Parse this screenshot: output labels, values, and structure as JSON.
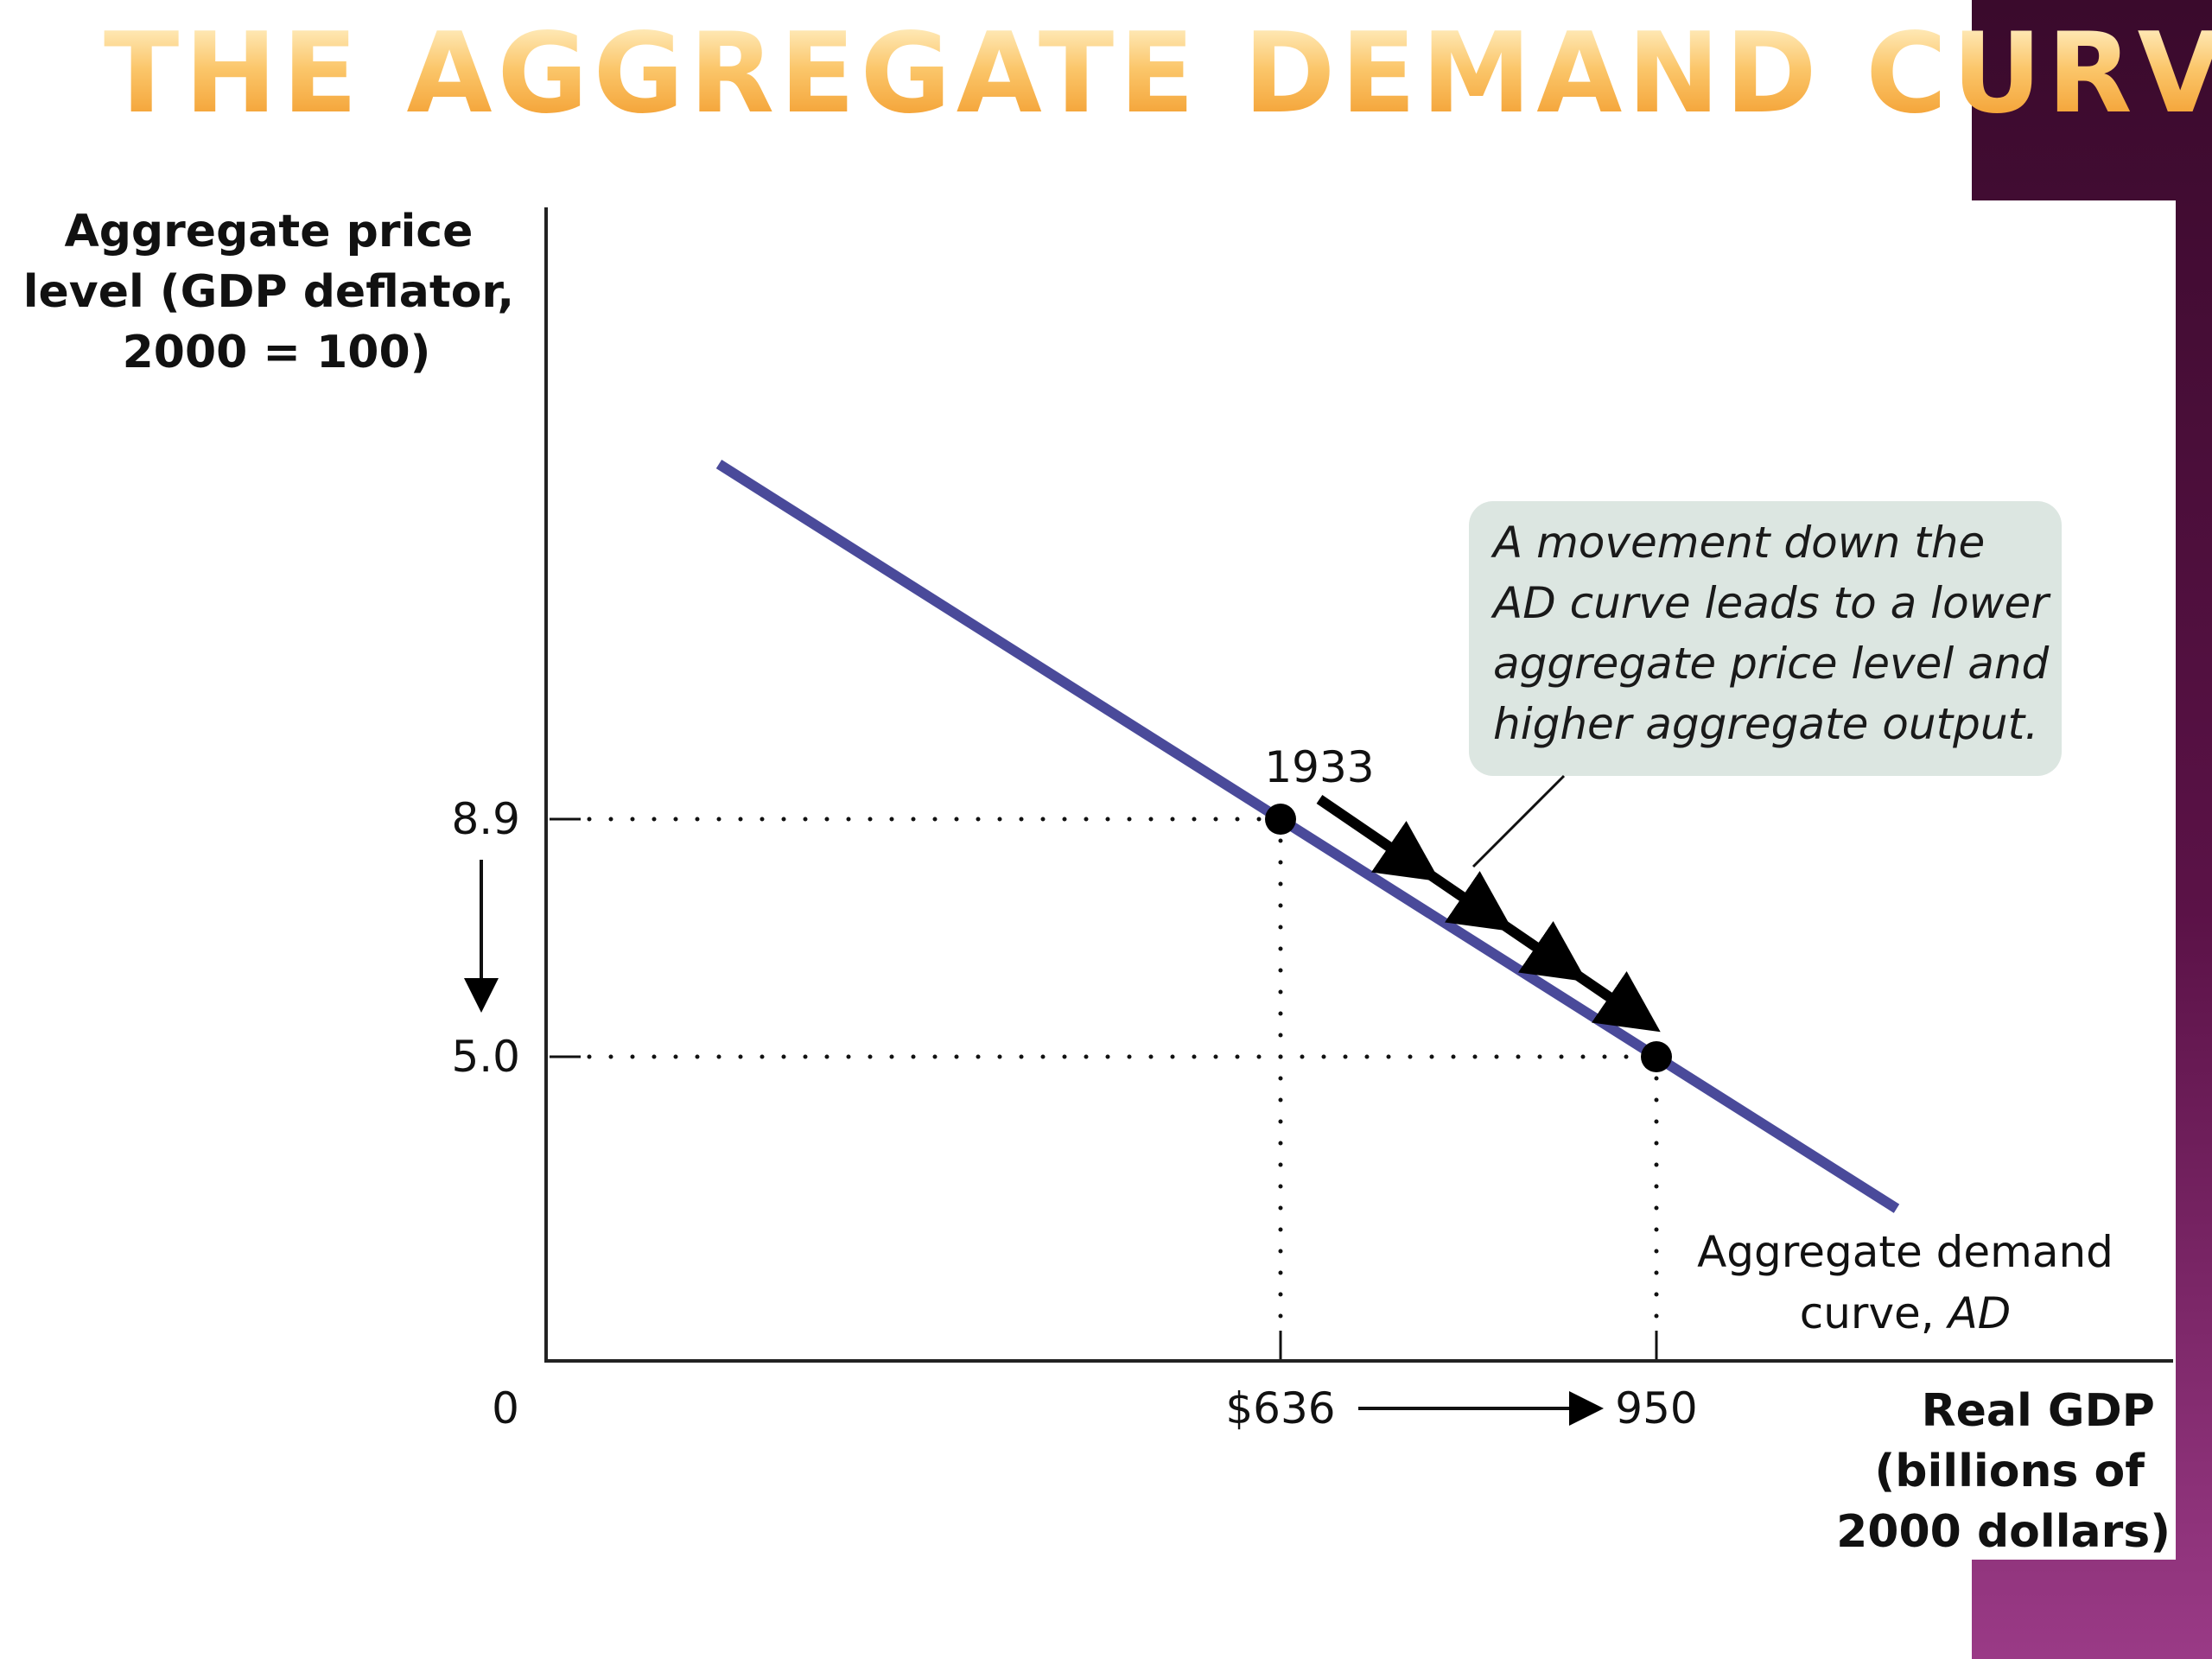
{
  "slide": {
    "title": "THE AGGREGATE DEMAND CURVE"
  },
  "chart_data": {
    "type": "line",
    "series": [
      {
        "name": "Aggregate demand curve, AD",
        "points": [
          {
            "x": 636,
            "y": 8.9,
            "label": "1933"
          },
          {
            "x": 950,
            "y": 5.0,
            "label": ""
          }
        ]
      }
    ],
    "ylabel_lines": [
      "Aggregate price",
      "level (GDP deflator,",
      "2000 = 100)"
    ],
    "xlabel_lines": [
      "Real GDP",
      "(billions of",
      "2000 dollars)"
    ],
    "origin_label": "0",
    "x_ticks": [
      "$636",
      "950"
    ],
    "y_ticks": [
      "8.9",
      "5.0"
    ],
    "point_label": "1933",
    "curve_label": {
      "line1": "Aggregate demand",
      "line2_plain": "curve, ",
      "line2_italic": "AD"
    },
    "annotation_lines": [
      "A movement down the",
      "AD curve leads to a lower",
      "aggregate price level and",
      "higher aggregate output."
    ],
    "grid": false,
    "colors": {
      "curve": "#4a4a9a",
      "callout_bg": "#dce6e1",
      "arrow": "#000000"
    }
  }
}
